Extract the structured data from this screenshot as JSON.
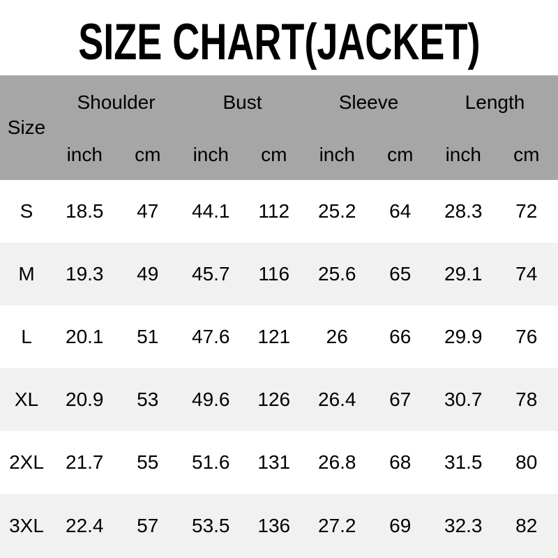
{
  "title": "SIZE CHART(JACKET)",
  "colors": {
    "header_bg": "#a6a6a6",
    "row_alt_bg": "#f1f1f1",
    "text": "#000000",
    "background": "#ffffff"
  },
  "chart_data": {
    "type": "table",
    "title": "SIZE CHART(JACKET)",
    "row_header_label": "Size",
    "column_groups": [
      "Shoulder",
      "Bust",
      "Sleeve",
      "Length"
    ],
    "units": [
      "inch",
      "cm",
      "inch",
      "cm",
      "inch",
      "cm",
      "inch",
      "cm"
    ],
    "rows": [
      {
        "size": "S",
        "values": [
          18.5,
          47,
          44.1,
          112,
          25.2,
          64,
          28.3,
          72
        ]
      },
      {
        "size": "M",
        "values": [
          19.3,
          49,
          45.7,
          116,
          25.6,
          65,
          29.1,
          74
        ]
      },
      {
        "size": "L",
        "values": [
          20.1,
          51,
          47.6,
          121,
          26,
          66,
          29.9,
          76
        ]
      },
      {
        "size": "XL",
        "values": [
          20.9,
          53,
          49.6,
          126,
          26.4,
          67,
          30.7,
          78
        ]
      },
      {
        "size": "2XL",
        "values": [
          21.7,
          55,
          51.6,
          131,
          26.8,
          68,
          31.5,
          80
        ]
      },
      {
        "size": "3XL",
        "values": [
          22.4,
          57,
          53.5,
          136,
          27.2,
          69,
          32.3,
          82
        ]
      }
    ]
  }
}
